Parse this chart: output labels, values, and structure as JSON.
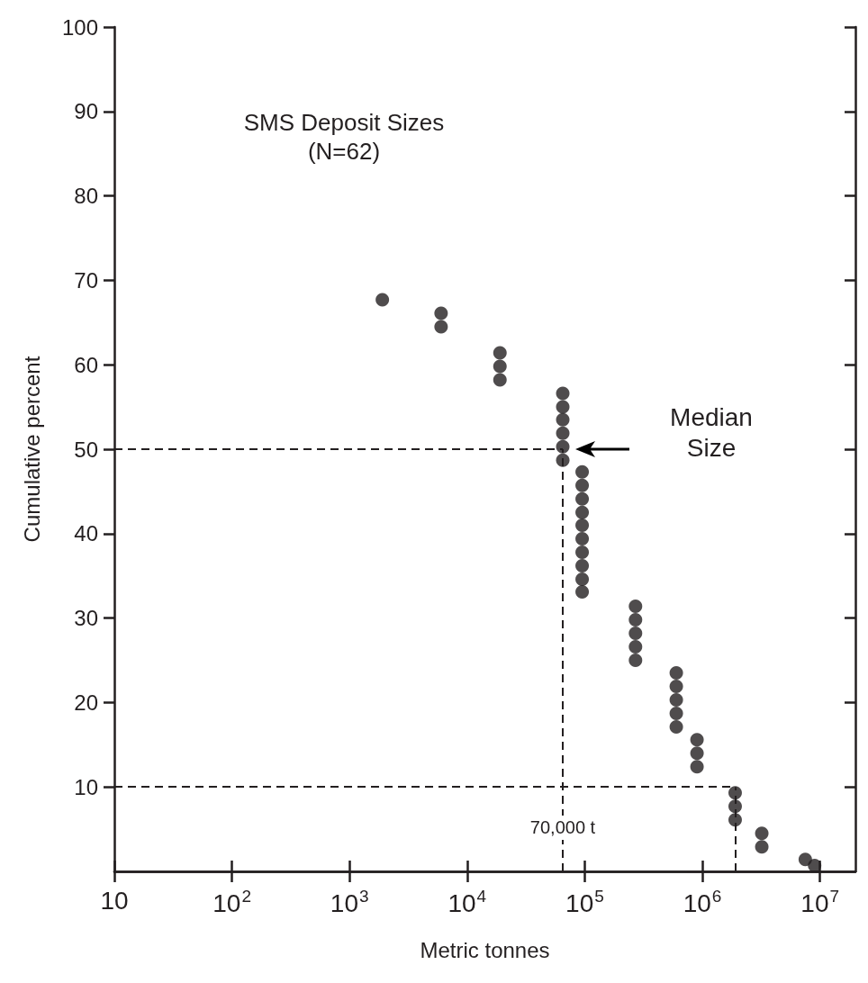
{
  "chart_data": {
    "type": "scatter",
    "title": "SMS Deposit Sizes",
    "subtitle": "(N=62)",
    "xlabel": "Metric tonnes",
    "ylabel": "Cumulative percent",
    "log": "x",
    "xlim": [
      10,
      20000000
    ],
    "ylim": [
      0,
      100
    ],
    "xticks": [
      {
        "value": 10,
        "label": "10"
      },
      {
        "value": 100,
        "label": "10$^{2}$"
      },
      {
        "value": 1000,
        "label": "10$^{3}$"
      },
      {
        "value": 10000,
        "label": "10$^{4}$"
      },
      {
        "value": 100000,
        "label": "10$^{5}$"
      },
      {
        "value": 1000000,
        "label": "10$^{6}$"
      },
      {
        "value": 10000000,
        "label": "10$^{7}$"
      }
    ],
    "yticks": [
      10,
      20,
      30,
      40,
      50,
      60,
      70,
      80,
      90,
      100
    ],
    "grid": false,
    "marker": "circle",
    "series": [
      {
        "color": "#231f20",
        "x": [
          1900,
          6000,
          6000,
          19000,
          19000,
          19000,
          65000,
          65000,
          65000,
          65000,
          65000,
          65000,
          95000,
          95000,
          95000,
          95000,
          95000,
          95000,
          95000,
          95000,
          95000,
          95000,
          270000,
          270000,
          270000,
          270000,
          270000,
          600000,
          600000,
          600000,
          600000,
          600000,
          900000,
          900000,
          900000,
          1900000,
          1900000,
          1900000,
          3200000,
          3200000,
          7500000,
          9000000
        ],
        "values": [
          67.7,
          66.1,
          64.5,
          61.4,
          59.8,
          58.2,
          56.6,
          55.0,
          53.5,
          51.9,
          50.3,
          48.7,
          47.3,
          45.7,
          44.1,
          42.5,
          41.0,
          39.4,
          37.8,
          36.2,
          34.6,
          33.1,
          31.4,
          29.8,
          28.2,
          26.6,
          25.0,
          23.5,
          21.9,
          20.3,
          18.7,
          17.1,
          15.6,
          14.0,
          12.4,
          9.3,
          7.7,
          6.1,
          4.5,
          2.9,
          1.4,
          0.7
        ]
      }
    ],
    "ref_lines": [
      {
        "axis": "y",
        "value": 50,
        "line_style": "dashed",
        "color": "#231f20"
      },
      {
        "axis": "x",
        "value": 65000,
        "label": "70,000 t",
        "line_style": "dashed",
        "color": "#231f20"
      },
      {
        "axis": "y",
        "value": 10,
        "line_style": "dashed",
        "color": "#231f20"
      },
      {
        "axis": "x",
        "value": 1900000,
        "line_style": "dashed",
        "color": "#231f20"
      }
    ],
    "annotations": [
      "Median Size"
    ]
  }
}
